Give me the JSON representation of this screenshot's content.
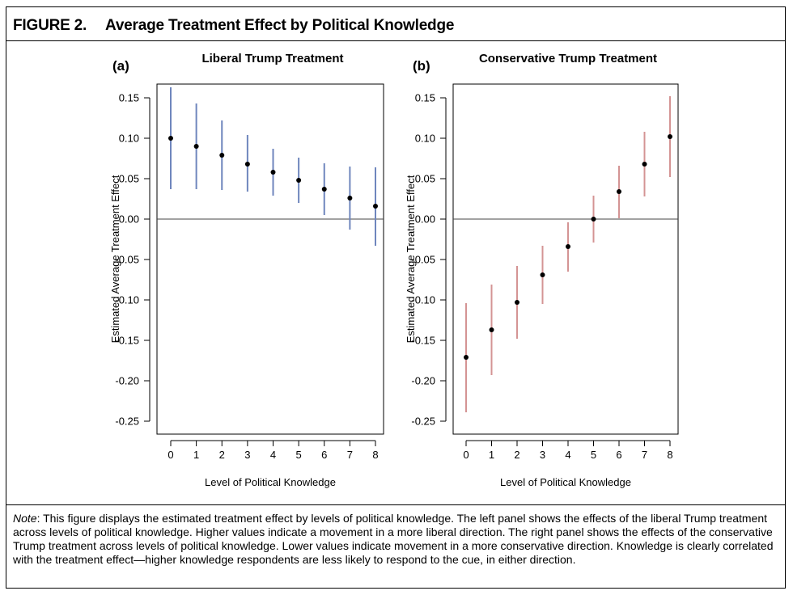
{
  "figure": {
    "label": "FIGURE 2.",
    "title": "Average Treatment Effect by Political Knowledge"
  },
  "note": {
    "label": "Note",
    "text": ": This figure displays the estimated treatment effect by levels of political knowledge. The left panel shows the effects of the liberal Trump treatment across levels of political knowledge. Higher values indicate a movement in a more liberal direction. The right panel shows the effects of the conservative Trump treatment across levels of political knowledge. Lower values indicate movement in a more conservative direction. Knowledge is clearly correlated with the treatment effect—higher knowledge respondents are less likely to respond to the cue, in either direction."
  },
  "chart_data": [
    {
      "type": "scatter",
      "panel_label": "(a)",
      "title": "Liberal Trump Treatment",
      "xlabel": "Level of Political Knowledge",
      "ylabel": "Estimated Average Treatment Effect",
      "x": [
        0,
        1,
        2,
        3,
        4,
        5,
        6,
        7,
        8
      ],
      "y": [
        0.1,
        0.09,
        0.079,
        0.068,
        0.058,
        0.048,
        0.037,
        0.026,
        0.016
      ],
      "ci_low": [
        0.037,
        0.037,
        0.036,
        0.034,
        0.029,
        0.02,
        0.005,
        -0.013,
        -0.033
      ],
      "ci_high": [
        0.163,
        0.143,
        0.122,
        0.104,
        0.087,
        0.076,
        0.069,
        0.065,
        0.064
      ],
      "xlim": [
        0,
        8
      ],
      "ylim": [
        -0.25,
        0.15
      ],
      "x_ticks": [
        "0",
        "1",
        "2",
        "3",
        "4",
        "5",
        "6",
        "7",
        "8"
      ],
      "y_ticks": [
        "0.15",
        "0.10",
        "0.05",
        "0.00",
        "-0.05",
        "-0.10",
        "-0.15",
        "-0.20",
        "-0.25"
      ],
      "reference_line": 0,
      "bar_color": "#6f86bd",
      "point_color": "#000000"
    },
    {
      "type": "scatter",
      "panel_label": "(b)",
      "title": "Conservative Trump Treatment",
      "xlabel": "Level of Political Knowledge",
      "ylabel": "Estimated Average Treatment Effect",
      "x": [
        0,
        1,
        2,
        3,
        4,
        5,
        6,
        7,
        8
      ],
      "y": [
        -0.171,
        -0.137,
        -0.103,
        -0.069,
        -0.034,
        0.0,
        0.034,
        0.068,
        0.102
      ],
      "ci_low": [
        -0.239,
        -0.193,
        -0.148,
        -0.105,
        -0.065,
        -0.029,
        0.001,
        0.028,
        0.052
      ],
      "ci_high": [
        -0.104,
        -0.081,
        -0.058,
        -0.033,
        -0.004,
        0.029,
        0.066,
        0.108,
        0.152
      ],
      "xlim": [
        0,
        8
      ],
      "ylim": [
        -0.25,
        0.15
      ],
      "x_ticks": [
        "0",
        "1",
        "2",
        "3",
        "4",
        "5",
        "6",
        "7",
        "8"
      ],
      "y_ticks": [
        "0.15",
        "0.10",
        "0.05",
        "0.00",
        "-0.05",
        "-0.10",
        "-0.15",
        "-0.20",
        "-0.25"
      ],
      "reference_line": 0,
      "bar_color": "#d49494",
      "point_color": "#000000"
    }
  ]
}
